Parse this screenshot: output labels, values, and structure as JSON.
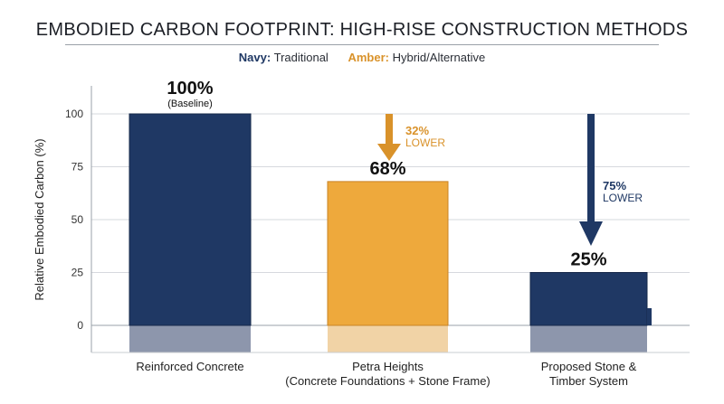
{
  "chart_data": {
    "type": "bar",
    "title": "EMBODIED CARBON FOOTPRINT: HIGH-RISE CONSTRUCTION METHODS",
    "legend": [
      {
        "key": "Navy:",
        "label": "Traditional",
        "color": "#1f3864"
      },
      {
        "key": "Amber:",
        "label": "Hybrid/Alternative",
        "color": "#d9922a"
      }
    ],
    "ylabel": "Relative Embodied Carbon (%)",
    "xlabel": "",
    "ylim": [
      0,
      100
    ],
    "yticks": [
      "0",
      "25",
      "50",
      "75",
      "100"
    ],
    "grid": true,
    "categories": [
      [
        "Reinforced Concrete"
      ],
      [
        "Petra Heights",
        "(Concrete Foundations + Stone Frame)"
      ],
      [
        "Proposed Stone &",
        "Timber System"
      ]
    ],
    "values": [
      100,
      68,
      25
    ],
    "value_labels": [
      "100%",
      "68%",
      "25%"
    ],
    "value_sublabels": [
      "(Baseline)",
      "",
      ""
    ],
    "bar_colors": [
      "#1f3864",
      "#eea93c",
      "#1f3864"
    ],
    "annotations": [
      {
        "bar": 1,
        "pct": "32%",
        "text": "LOWER",
        "color": "#d9922a"
      },
      {
        "bar": 2,
        "pct": "75%",
        "text": "LOWER",
        "color": "#1f3864"
      }
    ]
  }
}
